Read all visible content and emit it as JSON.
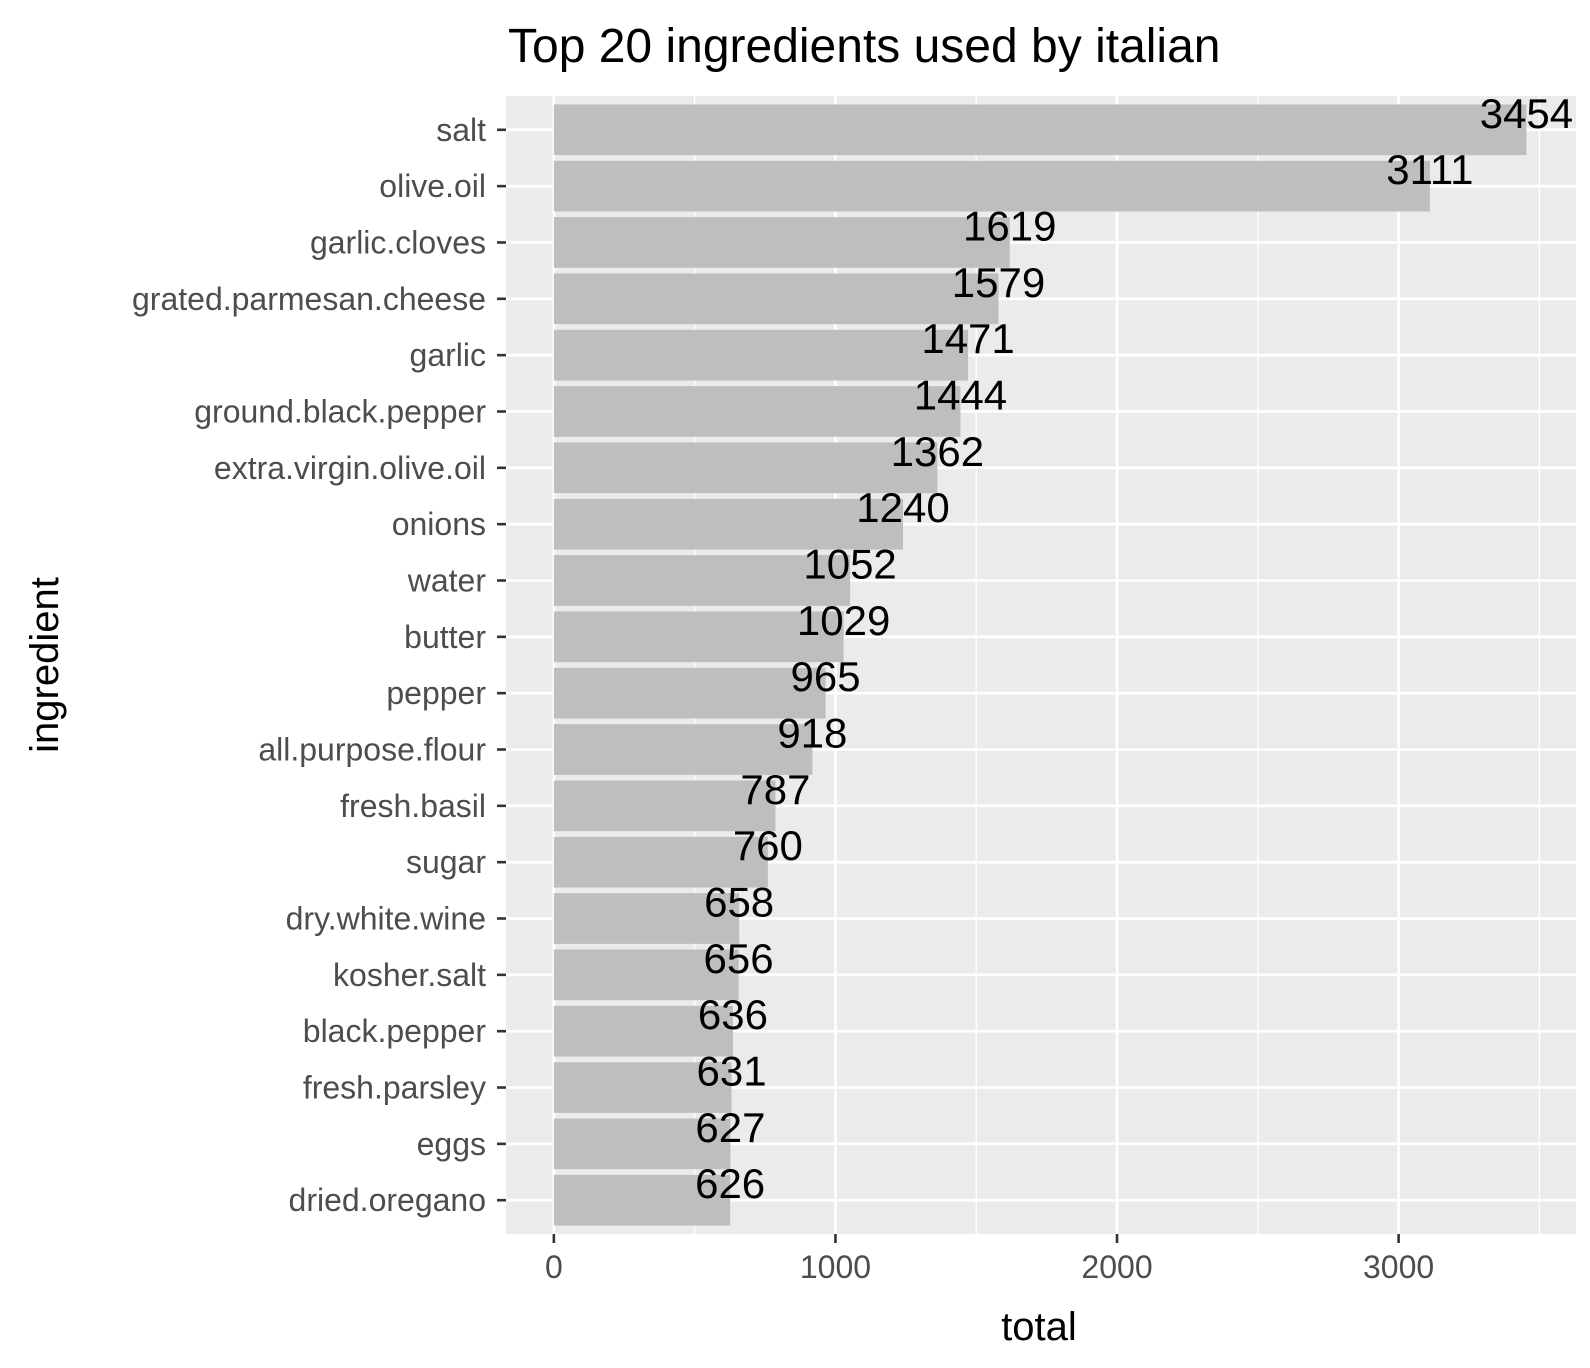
{
  "chart_data": {
    "type": "bar",
    "orientation": "horizontal",
    "title": "Top 20 ingredients used by italian",
    "xlabel": "total",
    "ylabel": "ingredient",
    "xlim": [
      -170,
      3630
    ],
    "x_ticks": [
      0,
      1000,
      2000,
      3000
    ],
    "x_tick_labels": [
      "0",
      "1000",
      "2000",
      "3000"
    ],
    "grid": true,
    "bar_color": "#bebebe",
    "panel_background": "#ebebeb",
    "categories": [
      "salt",
      "olive.oil",
      "garlic.cloves",
      "grated.parmesan.cheese",
      "garlic",
      "ground.black.pepper",
      "extra.virgin.olive.oil",
      "onions",
      "water",
      "butter",
      "pepper",
      "all.purpose.flour",
      "fresh.basil",
      "sugar",
      "dry.white.wine",
      "kosher.salt",
      "black.pepper",
      "fresh.parsley",
      "eggs",
      "dried.oregano"
    ],
    "values": [
      3454,
      3111,
      1619,
      1579,
      1471,
      1444,
      1362,
      1240,
      1052,
      1029,
      965,
      918,
      787,
      760,
      658,
      656,
      636,
      631,
      627,
      626
    ],
    "data_labels": [
      "3454",
      "3111",
      "1619",
      "1579",
      "1471",
      "1444",
      "1362",
      "1240",
      "1052",
      "1029",
      "965",
      "918",
      "787",
      "760",
      "658",
      "656",
      "636",
      "631",
      "627",
      "626"
    ]
  }
}
